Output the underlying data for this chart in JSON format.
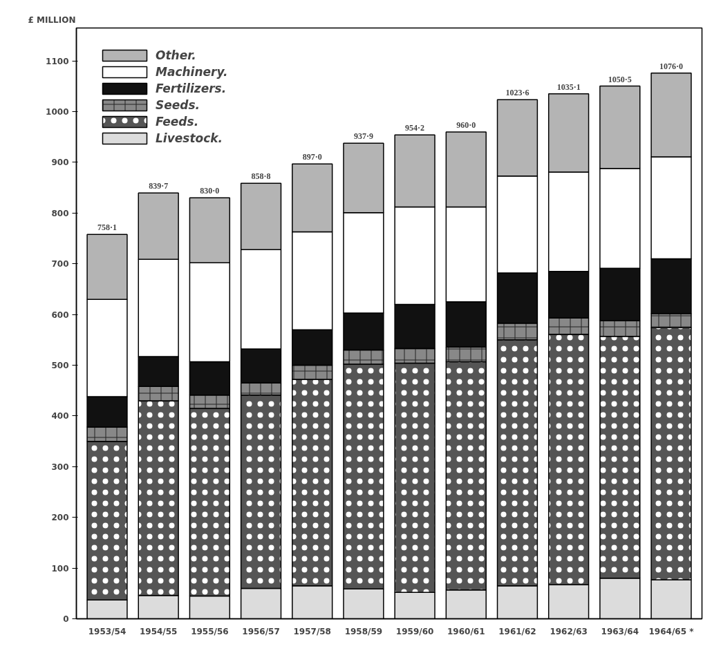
{
  "chart_data": {
    "type": "bar",
    "stacked": true,
    "ylabel": "£ MILLION",
    "categories": [
      "1953/54",
      "1954/55",
      "1955/56",
      "1956/57",
      "1957/58",
      "1958/59",
      "1959/60",
      "1960/61",
      "1961/62",
      "1962/63",
      "1963/64",
      "1964/65 *"
    ],
    "series": [
      {
        "name": "Livestock.",
        "color": "#dcdcdc",
        "values": [
          37,
          46,
          45,
          60,
          65,
          59,
          52,
          57,
          65,
          67,
          80,
          77
        ]
      },
      {
        "name": "Feeds.",
        "color": "#555555",
        "values": [
          313,
          384,
          370,
          381,
          407,
          443,
          452,
          450,
          485,
          494,
          477,
          497
        ]
      },
      {
        "name": "Seeds.",
        "color": "#888888",
        "values": [
          28,
          28,
          26,
          24,
          28,
          28,
          29,
          29,
          33,
          32,
          31,
          28
        ]
      },
      {
        "name": "Fertilizers.",
        "color": "#111111",
        "values": [
          60,
          59,
          66,
          67,
          70,
          73,
          87,
          89,
          99,
          92,
          103,
          108
        ]
      },
      {
        "name": "Machinery.",
        "color": "#ffffff",
        "values": [
          192,
          192,
          195,
          196,
          193,
          198,
          192,
          187,
          191,
          196,
          197,
          201
        ]
      },
      {
        "name": "Other.",
        "color": "#b4b4b4",
        "values": [
          128.1,
          130.7,
          128.0,
          130.8,
          134.0,
          136.9,
          142.2,
          148.0,
          150.6,
          154.1,
          162.5,
          165.0
        ]
      }
    ],
    "totals": [
      "758·1",
      "839·7",
      "830·0",
      "858·8",
      "897·0",
      "937·9",
      "954·2",
      "960·0",
      "1023·6",
      "1035·1",
      "1050·5",
      "1076·0"
    ],
    "ylim": [
      0,
      1165
    ],
    "yticks": [
      0,
      100,
      200,
      300,
      400,
      500,
      600,
      700,
      800,
      900,
      1000,
      1100
    ],
    "legend": "top left"
  }
}
